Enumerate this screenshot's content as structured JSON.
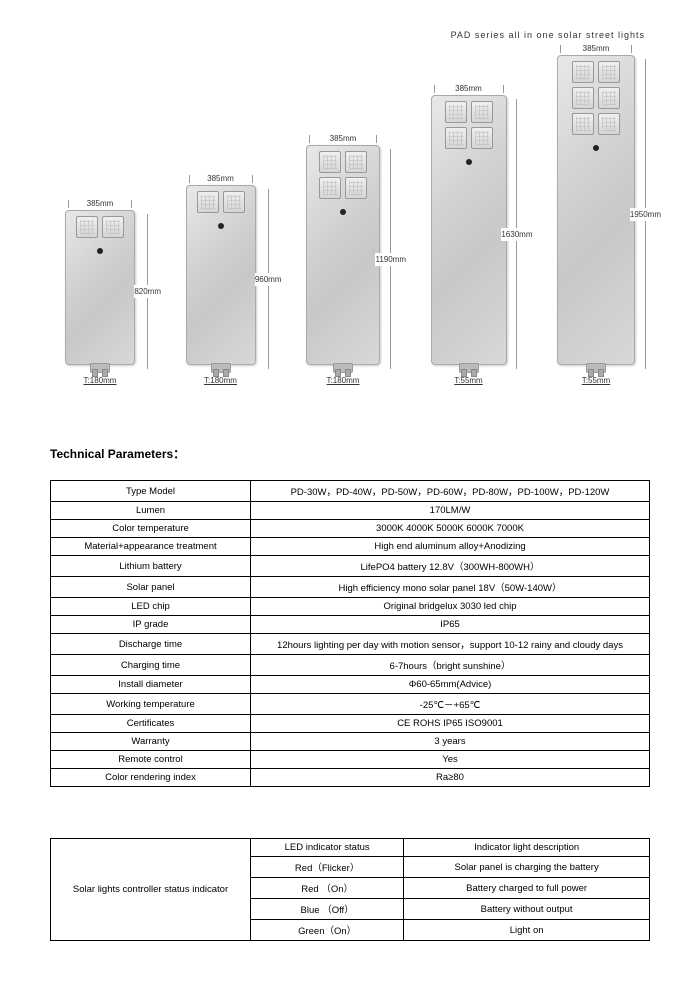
{
  "header": "PAD  series  all  in  one  solar  street  lights",
  "section_title": "Technical Parameters：",
  "units": [
    {
      "width": "385mm",
      "height": "820mm",
      "thickness": "T:180mm",
      "led_rows": 1,
      "led_cols": 2,
      "dev_w": 70,
      "dev_h": 155,
      "hpos": "right"
    },
    {
      "width": "385mm",
      "height": "960mm",
      "thickness": "T:180mm",
      "led_rows": 1,
      "led_cols": 2,
      "dev_w": 70,
      "dev_h": 180,
      "hpos": "right"
    },
    {
      "width": "385mm",
      "height": "1190mm",
      "thickness": "T:180mm",
      "led_rows": 2,
      "led_cols": 2,
      "dev_w": 74,
      "dev_h": 220,
      "hpos": "right"
    },
    {
      "width": "385mm",
      "height": "1630mm",
      "thickness": "T:55mm",
      "led_rows": 2,
      "led_cols": 2,
      "dev_w": 76,
      "dev_h": 270,
      "hpos": "right"
    },
    {
      "width": "385mm",
      "height": "1950mm",
      "thickness": "T:55mm",
      "led_rows": 3,
      "led_cols": 2,
      "dev_w": 78,
      "dev_h": 310,
      "hpos": "right"
    }
  ],
  "params": [
    {
      "label": "Type Model",
      "value": "PD-30W，PD-40W，PD-50W，PD-60W，PD-80W，PD-100W，PD-120W"
    },
    {
      "label": "Lumen",
      "value": "170LM/W"
    },
    {
      "label": "Color temperature",
      "value": "3000K    4000K    5000K    6000K    7000K"
    },
    {
      "label": "Material+appearance treatment",
      "value": "High end aluminum alloy+Anodizing"
    },
    {
      "label": "Lithium battery",
      "value": "LifePO4 battery 12.8V（300WH-800WH）"
    },
    {
      "label": "Solar panel",
      "value": "High efficiency mono solar panel 18V（50W-140W）"
    },
    {
      "label": "LED chip",
      "value": "Original bridgelux 3030 led chip"
    },
    {
      "label": "IP grade",
      "value": "IP65"
    },
    {
      "label": "Discharge time",
      "value": "12hours lighting per day with motion sensor，support 10-12 rainy and cloudy days"
    },
    {
      "label": "Charging time",
      "value": "6-7hours（bright sunshine）"
    },
    {
      "label": "Install diameter",
      "value": "Φ60-65mm(Advice)"
    },
    {
      "label": "Working temperature",
      "value": "-25℃－+65℃"
    },
    {
      "label": "Certificates",
      "value": "CE    ROHS    IP65 ISO9001"
    },
    {
      "label": "Warranty",
      "value": "3 years"
    },
    {
      "label": "Remote control",
      "value": "Yes"
    },
    {
      "label": "Color rendering index",
      "value": "Ra≥80"
    }
  ],
  "indicator": {
    "side_label": "Solar lights controller status indicator",
    "col1_header": "LED indicator status",
    "col2_header": "Indicator light description",
    "rows": [
      {
        "status": "Red（Flicker）",
        "desc": "Solar panel is charging the battery"
      },
      {
        "status": "Red （On）",
        "desc": "Battery charged to full power"
      },
      {
        "status": "Blue （Off）",
        "desc": "Battery without output"
      },
      {
        "status": "Green（On）",
        "desc": "Light on"
      }
    ]
  }
}
